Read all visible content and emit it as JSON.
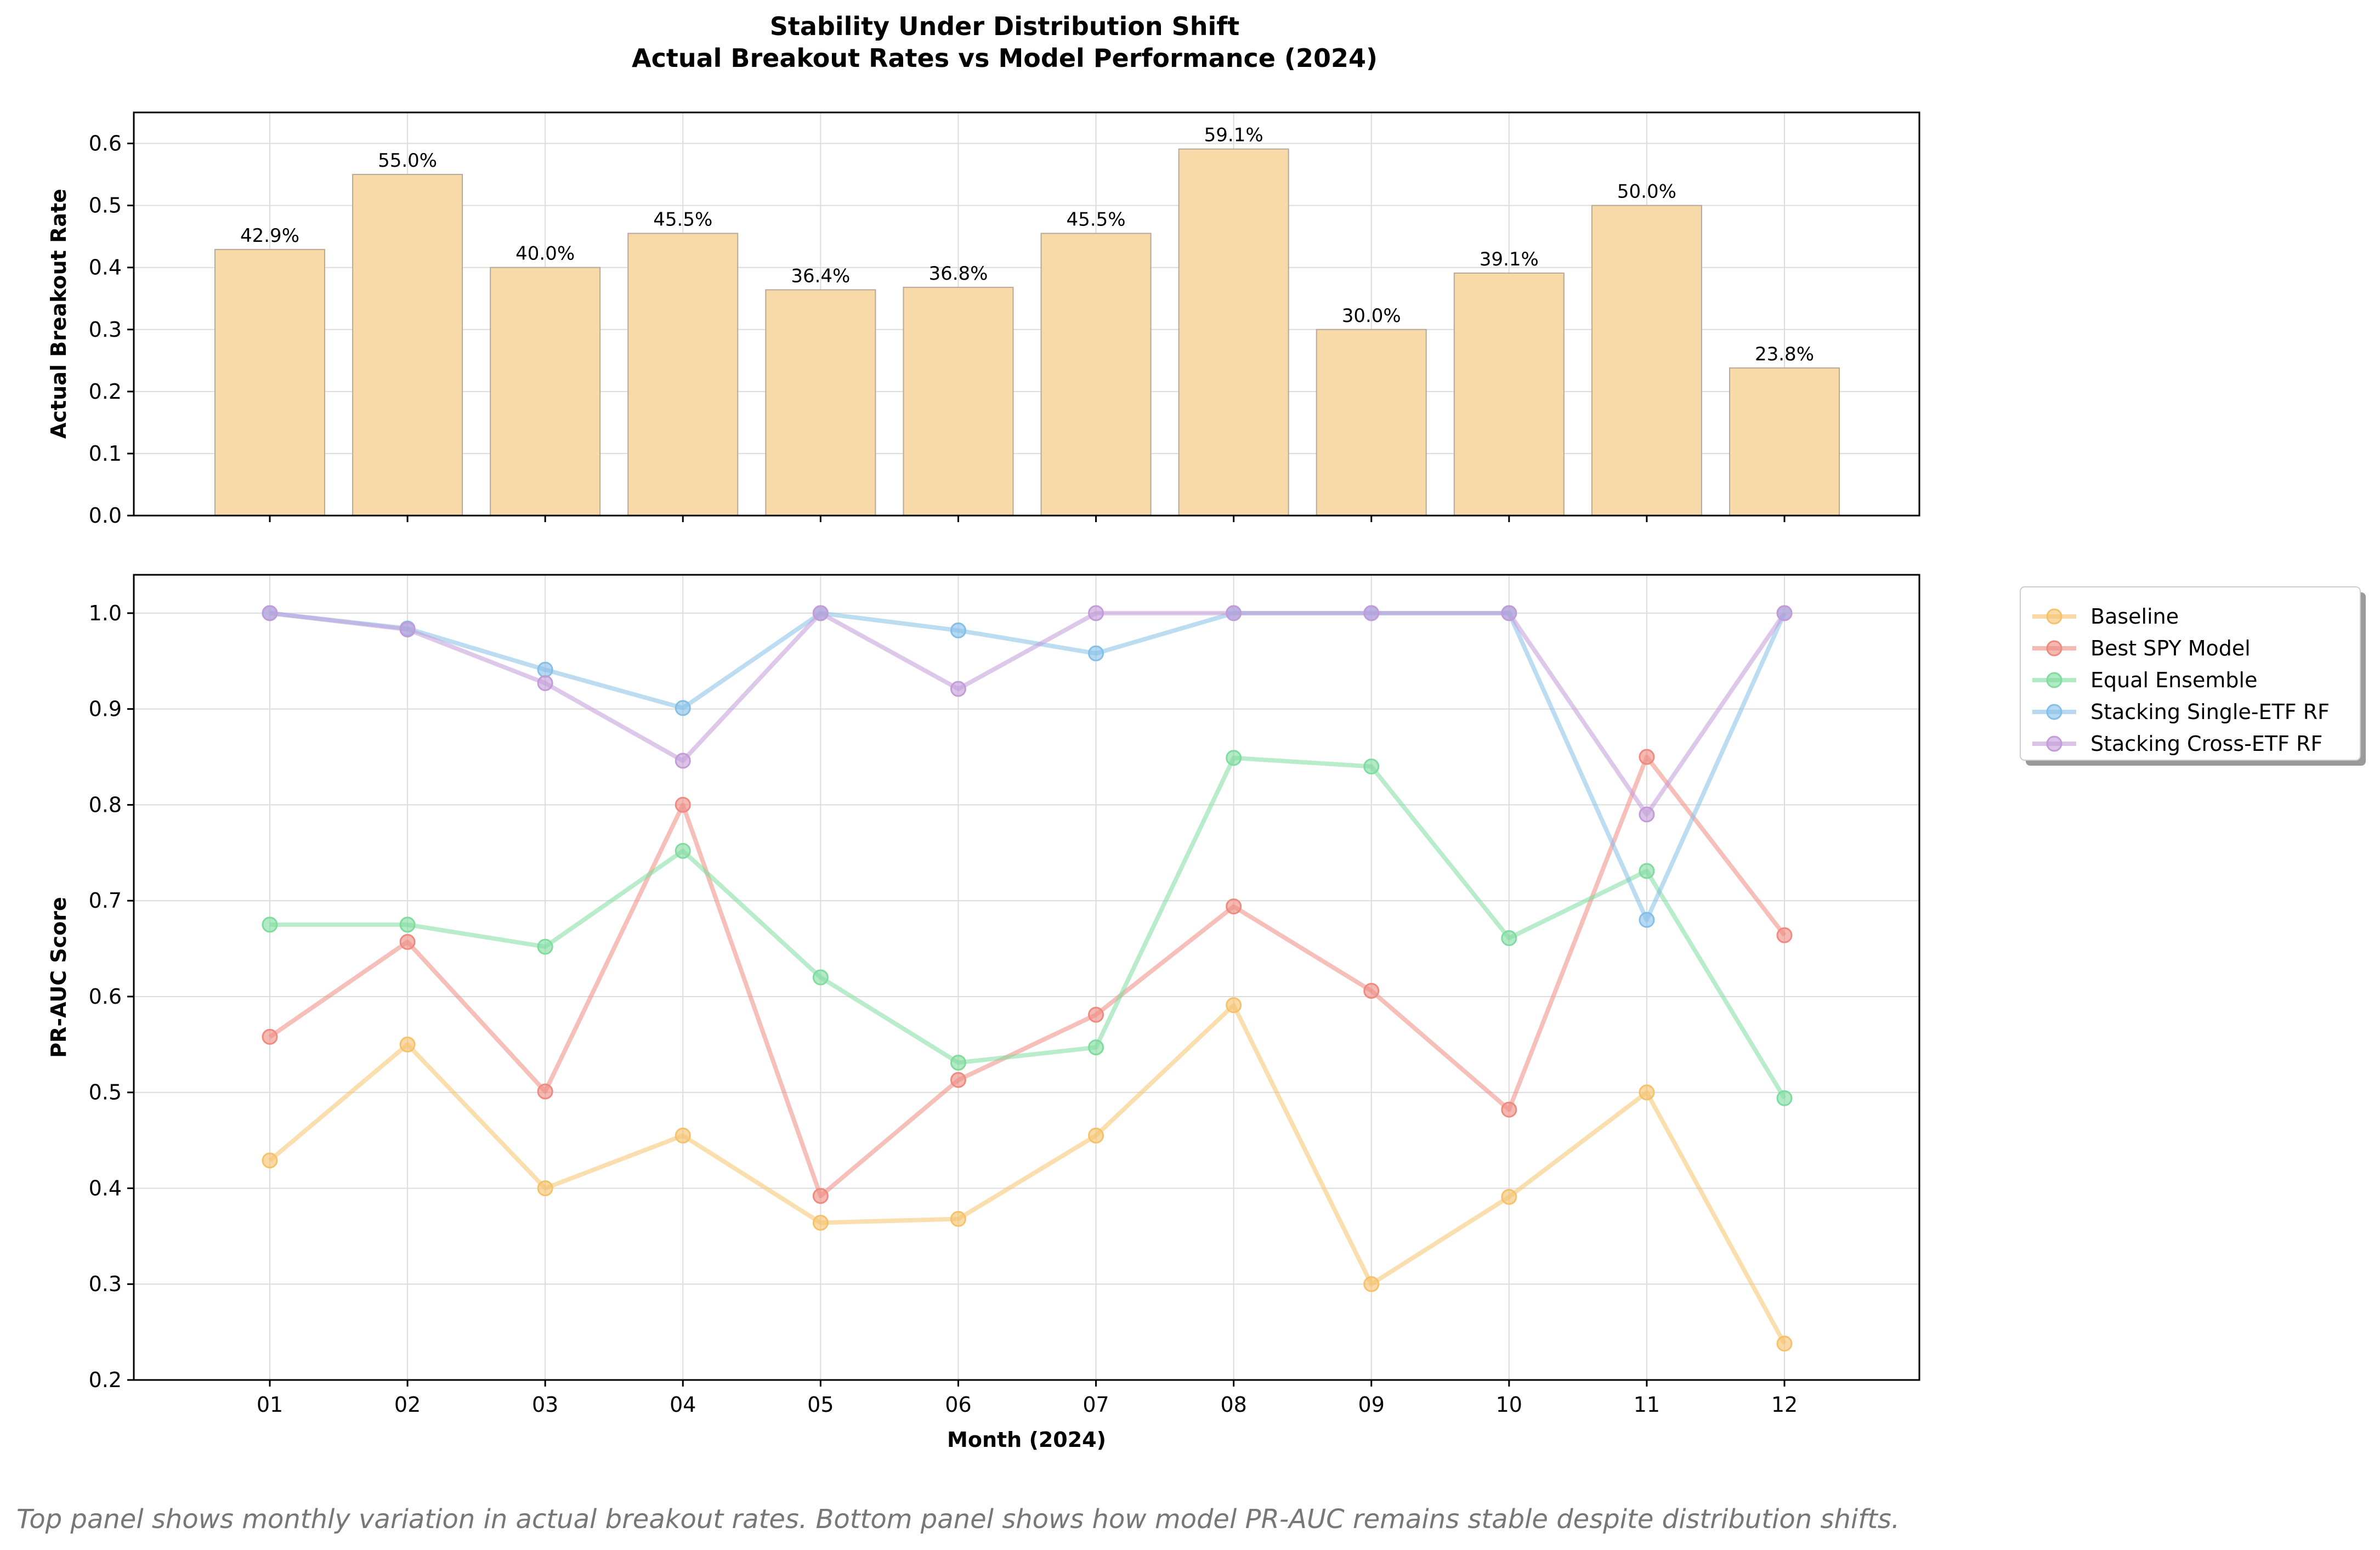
{
  "figure": {
    "title_line1": "Stability Under Distribution Shift",
    "title_line2": "Actual Breakout Rates vs Model Performance (2024)",
    "caption": "Top panel shows monthly variation in actual breakout rates. Bottom panel shows how model PR-AUC remains stable despite distribution shifts."
  },
  "chart_data": [
    {
      "type": "bar",
      "categories": [
        "01",
        "02",
        "03",
        "04",
        "05",
        "06",
        "07",
        "08",
        "09",
        "10",
        "11",
        "12"
      ],
      "values": [
        0.429,
        0.55,
        0.4,
        0.455,
        0.364,
        0.368,
        0.455,
        0.591,
        0.3,
        0.391,
        0.5,
        0.238
      ],
      "labels": [
        "42.9%",
        "55.0%",
        "40.0%",
        "45.5%",
        "36.4%",
        "36.8%",
        "45.5%",
        "59.1%",
        "30.0%",
        "39.1%",
        "50.0%",
        "23.8%"
      ],
      "ylabel": "Actual Breakout Rate",
      "ylim": [
        0,
        0.65
      ],
      "yticks": [
        "0.0",
        "0.1",
        "0.2",
        "0.3",
        "0.4",
        "0.5",
        "0.6"
      ],
      "bar_color": "#f8d9a8",
      "grid": true
    },
    {
      "type": "line",
      "categories": [
        "01",
        "02",
        "03",
        "04",
        "05",
        "06",
        "07",
        "08",
        "09",
        "10",
        "11",
        "12"
      ],
      "xlabel": "Month (2024)",
      "ylabel": "PR-AUC Score",
      "ylim": [
        0.2,
        1.04
      ],
      "yticks": [
        "0.2",
        "0.3",
        "0.4",
        "0.5",
        "0.6",
        "0.7",
        "0.8",
        "0.9",
        "1.0"
      ],
      "grid": true,
      "legend_position": "outside-right",
      "series": [
        {
          "name": "Baseline",
          "color": "#f5c26b",
          "values": [
            0.429,
            0.55,
            0.4,
            0.455,
            0.364,
            0.368,
            0.455,
            0.591,
            0.3,
            0.391,
            0.5,
            0.238
          ]
        },
        {
          "name": "Best SPY Model",
          "color": "#ef8a80",
          "values": [
            0.558,
            0.657,
            0.501,
            0.8,
            0.392,
            0.513,
            0.581,
            0.694,
            0.606,
            0.482,
            0.85,
            0.664
          ]
        },
        {
          "name": "Equal Ensemble",
          "color": "#7fdc9e",
          "values": [
            0.675,
            0.675,
            0.652,
            0.752,
            0.62,
            0.531,
            0.547,
            0.849,
            0.84,
            0.661,
            0.731,
            0.494
          ]
        },
        {
          "name": "Stacking Single-ETF RF",
          "color": "#85bfe8",
          "values": [
            1.0,
            0.984,
            0.941,
            0.901,
            1.0,
            0.982,
            0.958,
            1.0,
            1.0,
            1.0,
            0.68,
            1.0
          ]
        },
        {
          "name": "Stacking Cross-ETF RF",
          "color": "#c39bd8",
          "values": [
            1.0,
            0.983,
            0.927,
            0.846,
            1.0,
            0.921,
            1.0,
            1.0,
            1.0,
            1.0,
            0.79,
            1.0
          ]
        }
      ]
    }
  ]
}
